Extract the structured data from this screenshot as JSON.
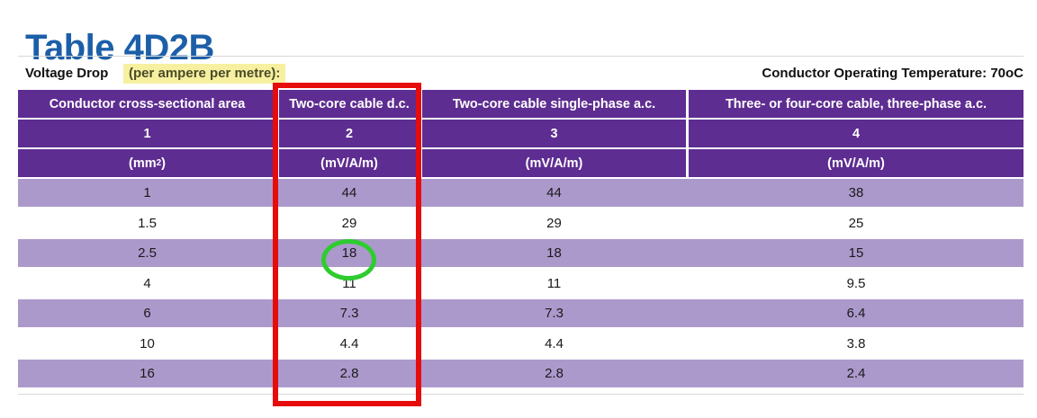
{
  "title": "Table 4D2B",
  "info_bar": {
    "voltage_drop_label": "Voltage Drop",
    "voltage_drop_highlight": "(per ampere per metre):",
    "temperature_label": "Conductor Operating Temperature: 70oC"
  },
  "table": {
    "headers": [
      "Conductor cross-sectional area",
      "Two-core cable d.c.",
      "Two-core cable single-phase a.c.",
      "Three- or four-core cable, three-phase a.c."
    ],
    "column_numbers": [
      "1",
      "2",
      "3",
      "4"
    ],
    "units": {
      "col1": {
        "prefix": "(mm",
        "sup": "2",
        "suffix": ")"
      },
      "col2": "(mV/A/m)",
      "col3": "(mV/A/m)",
      "col4": "(mV/A/m)"
    },
    "rows": [
      [
        "1",
        "44",
        "44",
        "38"
      ],
      [
        "1.5",
        "29",
        "29",
        "25"
      ],
      [
        "2.5",
        "18",
        "18",
        "15"
      ],
      [
        "4",
        "11",
        "11",
        "9.5"
      ],
      [
        "6",
        "7.3",
        "7.3",
        "6.4"
      ],
      [
        "10",
        "4.4",
        "4.4",
        "3.8"
      ],
      [
        "16",
        "2.8",
        "2.8",
        "2.4"
      ]
    ]
  },
  "annotations": {
    "highlighted_column_header": "Two-core cable d.c.",
    "highlighted_column_number": "2",
    "circled_value": "18",
    "circled_value_row": "2.5"
  },
  "colors": {
    "title_blue": "#1c5fa8",
    "header_purple": "#5e2d91",
    "row_lavender": "#ac99cc",
    "highlight_yellow": "#f6f0a0",
    "annotation_red": "#e60c0c",
    "annotation_green": "#2ecc2e"
  }
}
